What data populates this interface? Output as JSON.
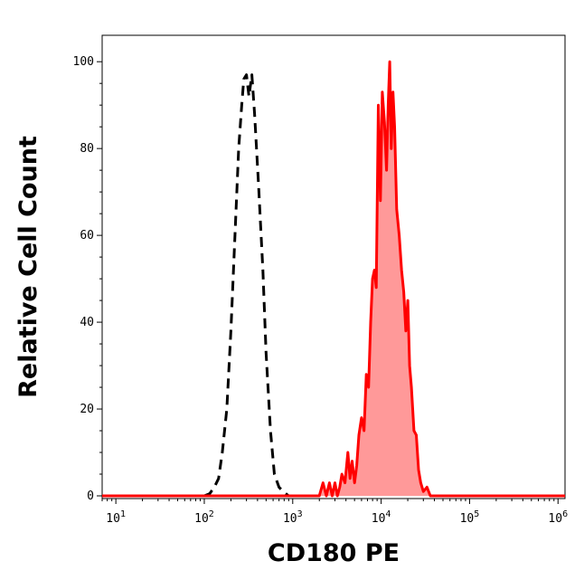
{
  "chart_data": {
    "type": "area",
    "xlabel": "CD180 PE",
    "ylabel": "Relative Cell Count",
    "x_scale": "log",
    "xlim": [
      7,
      1200000
    ],
    "ylim": [
      0,
      104
    ],
    "grid": false,
    "legend": "none",
    "x_ticks": [
      {
        "base": "10",
        "exp": "1",
        "value": 10
      },
      {
        "base": "10",
        "exp": "2",
        "value": 100
      },
      {
        "base": "10",
        "exp": "3",
        "value": 1000
      },
      {
        "base": "10",
        "exp": "4",
        "value": 10000
      },
      {
        "base": "10",
        "exp": "5",
        "value": 100000
      },
      {
        "base": "10",
        "exp": "6",
        "value": 1000000
      }
    ],
    "y_ticks": [
      {
        "label": "0",
        "value": 0
      },
      {
        "label": "20",
        "value": 20
      },
      {
        "label": "40",
        "value": 40
      },
      {
        "label": "60",
        "value": 60
      },
      {
        "label": "80",
        "value": 80
      },
      {
        "label": "100",
        "value": 100
      }
    ],
    "series": [
      {
        "style": "dashed",
        "color": "#000000",
        "fill": "none",
        "points": [
          [
            100,
            0
          ],
          [
            115,
            0.5
          ],
          [
            130,
            2
          ],
          [
            145,
            4
          ],
          [
            160,
            10
          ],
          [
            180,
            20
          ],
          [
            200,
            38
          ],
          [
            220,
            58
          ],
          [
            245,
            80
          ],
          [
            265,
            90
          ],
          [
            280,
            96
          ],
          [
            300,
            97
          ],
          [
            320,
            92
          ],
          [
            345,
            97
          ],
          [
            370,
            88
          ],
          [
            410,
            72
          ],
          [
            460,
            52
          ],
          [
            500,
            33
          ],
          [
            560,
            15
          ],
          [
            620,
            5
          ],
          [
            700,
            2
          ],
          [
            780,
            1
          ],
          [
            900,
            0
          ]
        ]
      },
      {
        "style": "solid",
        "color": "#ff0000",
        "fill": "#ff9999",
        "points": [
          [
            7,
            0
          ],
          [
            2000,
            0
          ],
          [
            2200,
            3
          ],
          [
            2400,
            0
          ],
          [
            2600,
            3
          ],
          [
            2800,
            0
          ],
          [
            3000,
            3
          ],
          [
            3200,
            0
          ],
          [
            3400,
            2
          ],
          [
            3600,
            5
          ],
          [
            3900,
            3
          ],
          [
            4200,
            10
          ],
          [
            4450,
            4
          ],
          [
            4700,
            8
          ],
          [
            5000,
            3
          ],
          [
            5300,
            7
          ],
          [
            5600,
            14
          ],
          [
            6000,
            18
          ],
          [
            6400,
            15
          ],
          [
            6800,
            28
          ],
          [
            7200,
            25
          ],
          [
            7600,
            40
          ],
          [
            8000,
            50
          ],
          [
            8400,
            52
          ],
          [
            8800,
            48
          ],
          [
            9300,
            90
          ],
          [
            9800,
            68
          ],
          [
            10300,
            93
          ],
          [
            10900,
            86
          ],
          [
            11500,
            75
          ],
          [
            12000,
            90
          ],
          [
            12500,
            100
          ],
          [
            13000,
            80
          ],
          [
            13600,
            93
          ],
          [
            14200,
            85
          ],
          [
            15000,
            66
          ],
          [
            16000,
            60
          ],
          [
            17000,
            52
          ],
          [
            18000,
            47
          ],
          [
            19000,
            38
          ],
          [
            20000,
            45
          ],
          [
            21000,
            30
          ],
          [
            22000,
            25
          ],
          [
            23500,
            15
          ],
          [
            25000,
            14
          ],
          [
            26500,
            6
          ],
          [
            28000,
            3
          ],
          [
            30000,
            1
          ],
          [
            33000,
            2
          ],
          [
            36000,
            0
          ],
          [
            1200000,
            0
          ]
        ]
      }
    ]
  }
}
